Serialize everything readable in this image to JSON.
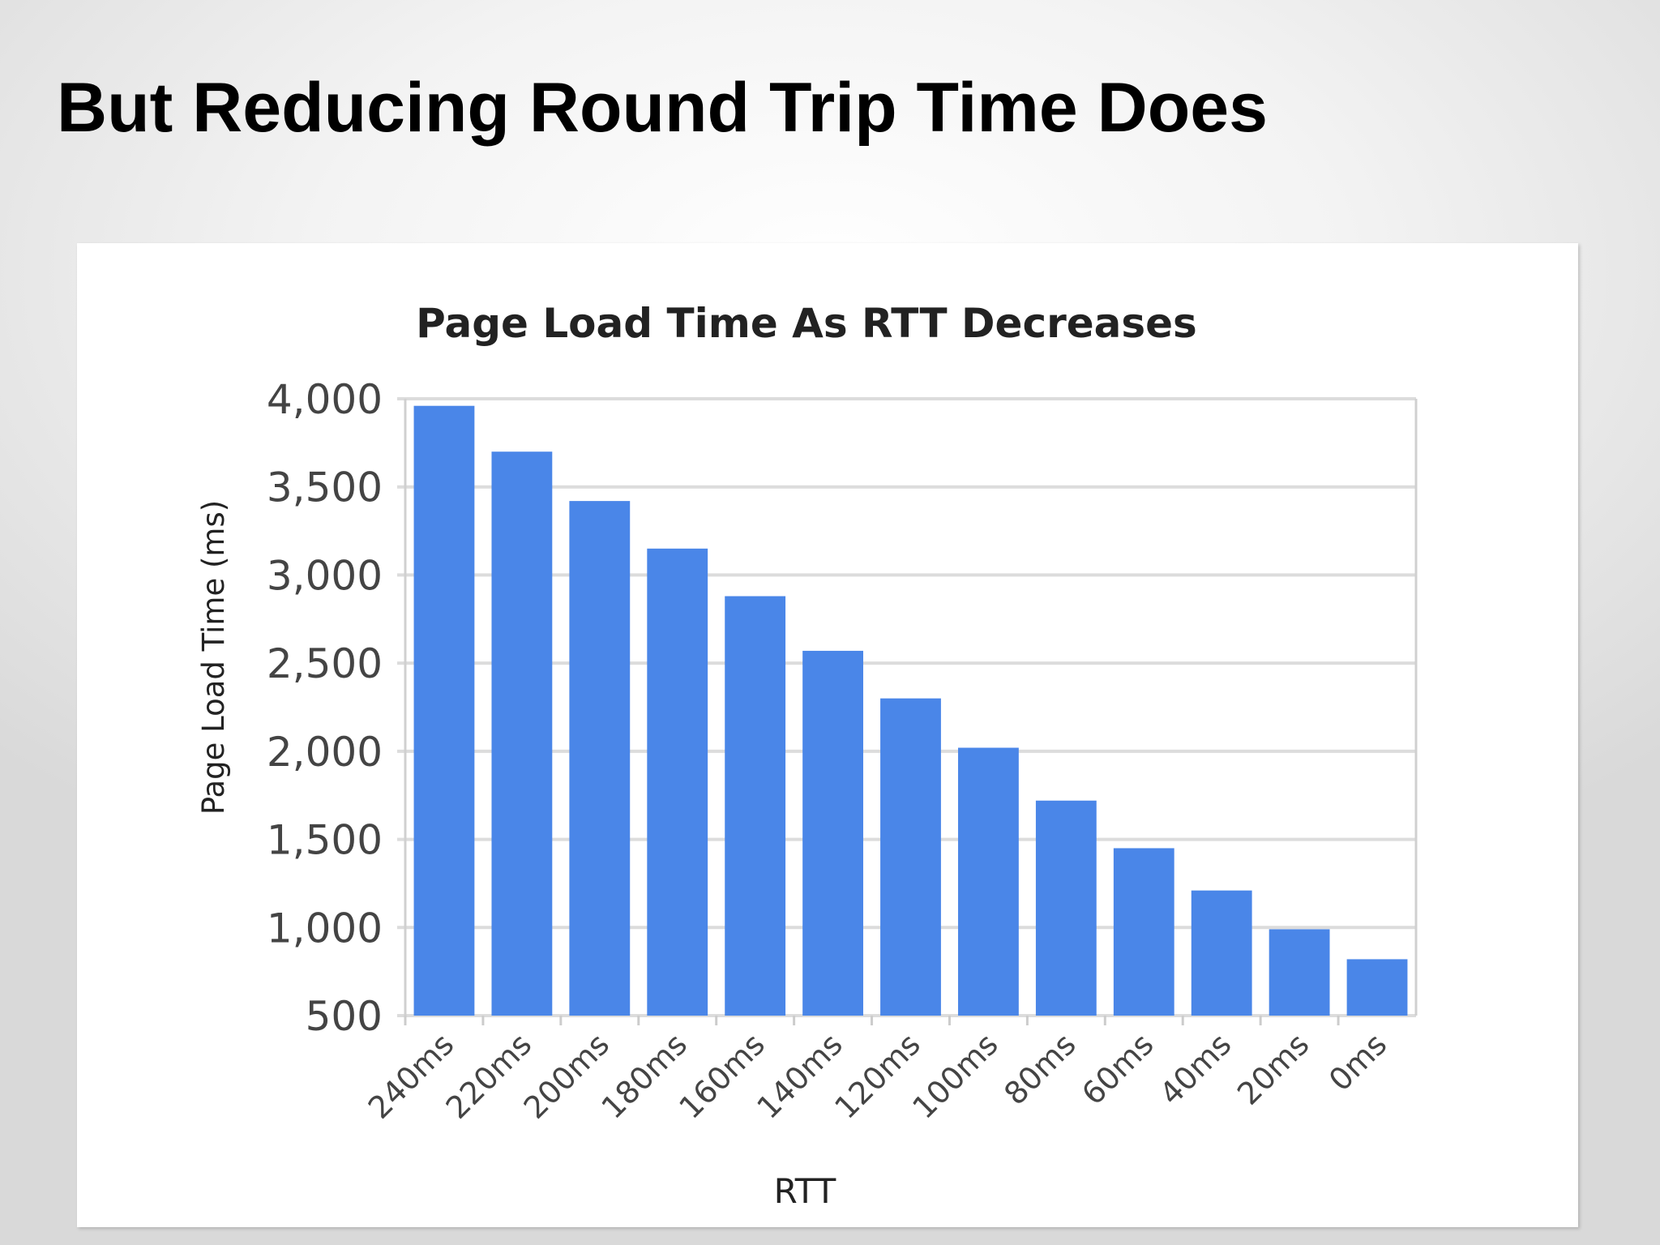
{
  "slide": {
    "title": "But Reducing Round Trip Time Does"
  },
  "chart_data": {
    "type": "bar",
    "title": "Page Load Time As RTT Decreases",
    "xlabel": "RTT",
    "ylabel": "Page Load Time (ms)",
    "categories": [
      "240ms",
      "220ms",
      "200ms",
      "180ms",
      "160ms",
      "140ms",
      "120ms",
      "100ms",
      "80ms",
      "60ms",
      "40ms",
      "20ms",
      "0ms"
    ],
    "values": [
      3960,
      3700,
      3420,
      3150,
      2880,
      2570,
      2300,
      2020,
      1720,
      1450,
      1210,
      990,
      820
    ],
    "ylim": [
      500,
      4000
    ],
    "yticks": [
      500,
      1000,
      1500,
      2000,
      2500,
      3000,
      3500,
      4000
    ],
    "ytick_labels": [
      "500",
      "1,000",
      "1,500",
      "2,000",
      "2,500",
      "3,000",
      "3,500",
      "4,000"
    ],
    "grid": true,
    "legend": "none",
    "bar_color": "#4a86e8"
  }
}
